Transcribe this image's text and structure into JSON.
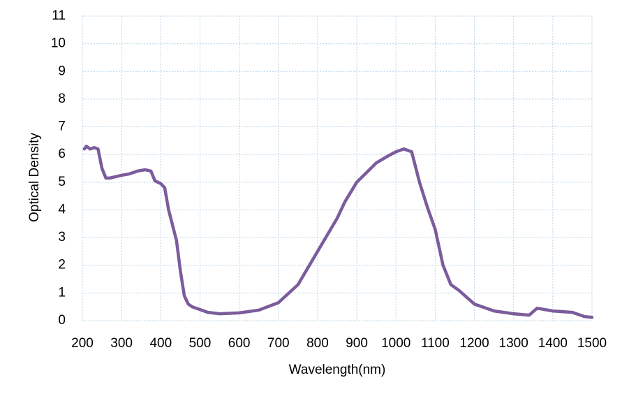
{
  "chart_data": {
    "type": "line",
    "x_label": "Wavelength(nm)",
    "y_label": "Optical Density",
    "x": [
      205,
      210,
      220,
      230,
      240,
      250,
      260,
      270,
      300,
      320,
      340,
      360,
      375,
      385,
      400,
      410,
      420,
      440,
      450,
      460,
      470,
      480,
      500,
      520,
      550,
      600,
      650,
      700,
      750,
      800,
      850,
      870,
      900,
      950,
      980,
      1000,
      1020,
      1040,
      1060,
      1080,
      1100,
      1120,
      1140,
      1160,
      1180,
      1200,
      1250,
      1300,
      1340,
      1360,
      1400,
      1450,
      1480,
      1500
    ],
    "series": [
      {
        "name": "Optical Density",
        "color": "#7b5c9c",
        "values": [
          6.2,
          6.3,
          6.2,
          6.25,
          6.2,
          5.5,
          5.15,
          5.15,
          5.25,
          5.3,
          5.4,
          5.45,
          5.4,
          5.05,
          4.95,
          4.8,
          4.0,
          2.9,
          1.8,
          0.9,
          0.6,
          0.5,
          0.4,
          0.3,
          0.25,
          0.28,
          0.38,
          0.65,
          1.3,
          2.5,
          3.7,
          4.3,
          5.0,
          5.7,
          5.95,
          6.1,
          6.2,
          6.1,
          5.0,
          4.1,
          3.3,
          2.0,
          1.3,
          1.1,
          0.85,
          0.6,
          0.35,
          0.25,
          0.2,
          0.45,
          0.35,
          0.3,
          0.15,
          0.12
        ]
      }
    ],
    "xlim": [
      200,
      1500
    ],
    "xticks": [
      200,
      300,
      400,
      500,
      600,
      700,
      800,
      900,
      1000,
      1100,
      1200,
      1300,
      1400,
      1500
    ],
    "ylim": [
      0,
      11
    ],
    "yticks": [
      0,
      1,
      2,
      3,
      4,
      5,
      6,
      7,
      8,
      9,
      10,
      11
    ],
    "grid": true
  }
}
